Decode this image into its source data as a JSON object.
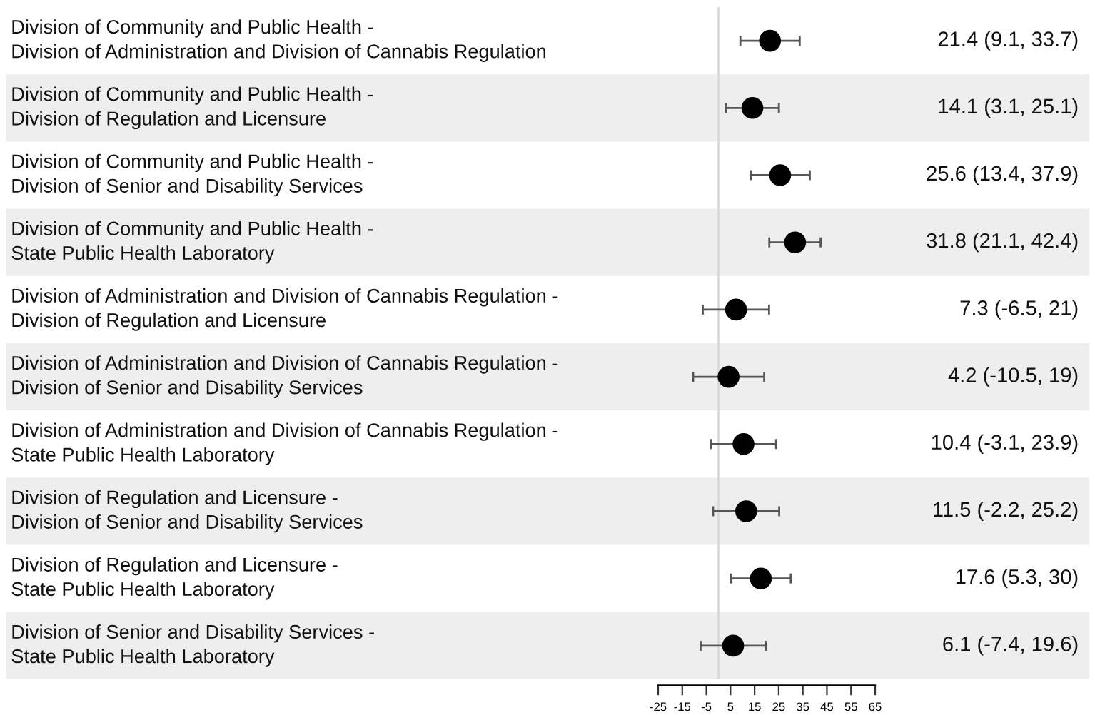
{
  "chart_data": {
    "type": "scatter",
    "orientation": "horizontal",
    "marker": "circle",
    "grid": false,
    "legend": false,
    "categories": [
      "Division of Community and Public Health -\nDivision of Administration and Division of Cannabis Regulation",
      "Division of Community and Public Health -\nDivision of Regulation and Licensure",
      "Division of Community and Public Health -\nDivision of Senior and Disability Services",
      "Division of Community and Public Health -\nState Public Health Laboratory",
      "Division of Administration and Division of Cannabis Regulation -\nDivision of Regulation and Licensure",
      "Division of Administration and Division of Cannabis Regulation -\nDivision of Senior and Disability Services",
      "Division of Administration and Division of Cannabis Regulation -\nState Public Health Laboratory",
      "Division of Regulation and Licensure -\nDivision of Senior and Disability Services",
      "Division of Regulation and Licensure -\nState Public Health Laboratory",
      "Division of Senior and Disability Services -\nState Public Health Laboratory"
    ],
    "series": [
      {
        "color": "#000000",
        "values": [
          21.4,
          14.1,
          25.6,
          31.8,
          7.3,
          4.2,
          10.4,
          11.5,
          17.6,
          6.1
        ],
        "errors": [
          [
            9.1,
            33.7
          ],
          [
            3.1,
            25.1
          ],
          [
            13.4,
            37.9
          ],
          [
            21.1,
            42.4
          ],
          [
            -6.5,
            21
          ],
          [
            -10.5,
            19
          ],
          [
            -3.1,
            23.9
          ],
          [
            -2.2,
            25.2
          ],
          [
            5.3,
            30
          ],
          [
            -7.4,
            19.6
          ]
        ],
        "value_labels": [
          "21.4 (9.1, 33.7)",
          "14.1 (3.1, 25.1)",
          "25.6 (13.4, 37.9)",
          "31.8 (21.1, 42.4)",
          "7.3 (-6.5, 21)",
          "4.2 (-10.5, 19)",
          "10.4 (-3.1, 23.9)",
          "11.5 (-2.2, 25.2)",
          "17.6 (5.3, 30)",
          "6.1 (-7.4, 19.6)"
        ]
      }
    ],
    "xlim": [
      -25,
      65
    ],
    "xticks": [
      -25,
      -15,
      -5,
      5,
      15,
      25,
      35,
      45,
      55,
      65
    ],
    "ref_lines": [
      {
        "axis": "x",
        "value": 0,
        "color": "#d9d9d9"
      }
    ]
  }
}
